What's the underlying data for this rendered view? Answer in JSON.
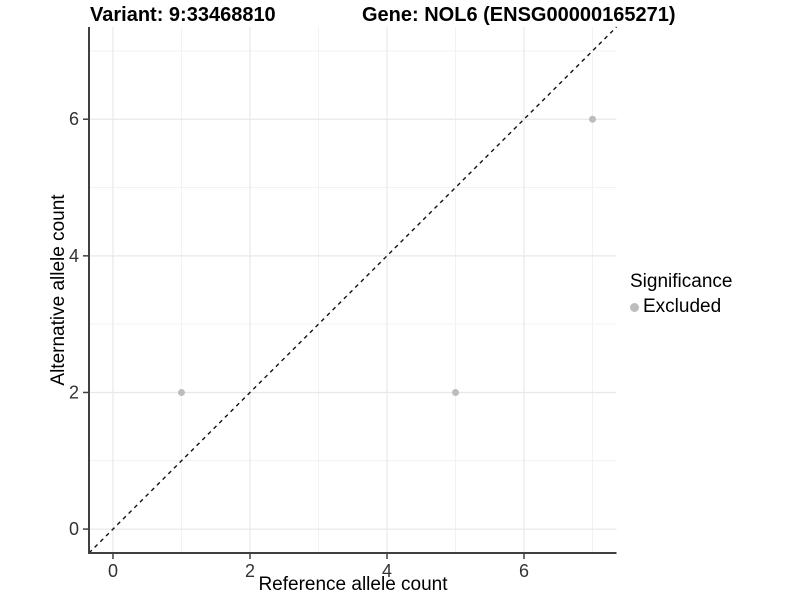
{
  "titles": {
    "variant": "Variant: 9:33468810",
    "gene": "Gene: NOL6 (ENSG00000165271)"
  },
  "chart_data": {
    "type": "scatter",
    "title_left": "Variant: 9:33468810",
    "title_right": "Gene: NOL6 (ENSG00000165271)",
    "xlabel": "Reference allele count",
    "ylabel": "Alternative allele count",
    "xlim": [
      -0.35,
      7.35
    ],
    "ylim": [
      -0.35,
      7.35
    ],
    "x_ticks": [
      0,
      2,
      4,
      6
    ],
    "y_ticks": [
      0,
      2,
      4,
      6
    ],
    "minor_gridlines": [
      1,
      3,
      5,
      7
    ],
    "grid": true,
    "series": [
      {
        "name": "Excluded",
        "color": "#bdbdbd",
        "points": [
          [
            1,
            2
          ],
          [
            5,
            2
          ],
          [
            7,
            6
          ]
        ]
      }
    ],
    "reference_line": {
      "kind": "identity y=x",
      "style": "dashed",
      "color": "#111111"
    },
    "legend": {
      "title": "Significance",
      "position": "right",
      "items": [
        {
          "label": "Excluded",
          "color": "#bdbdbd"
        }
      ]
    }
  },
  "style": {
    "background": "#ffffff",
    "axis_color": "#404040",
    "tick_label_color": "#333333",
    "grid_major_color": "#e8e8e8",
    "grid_minor_color": "#f2f2f2",
    "point_color": "#bdbdbd",
    "dash_color": "#111111"
  }
}
